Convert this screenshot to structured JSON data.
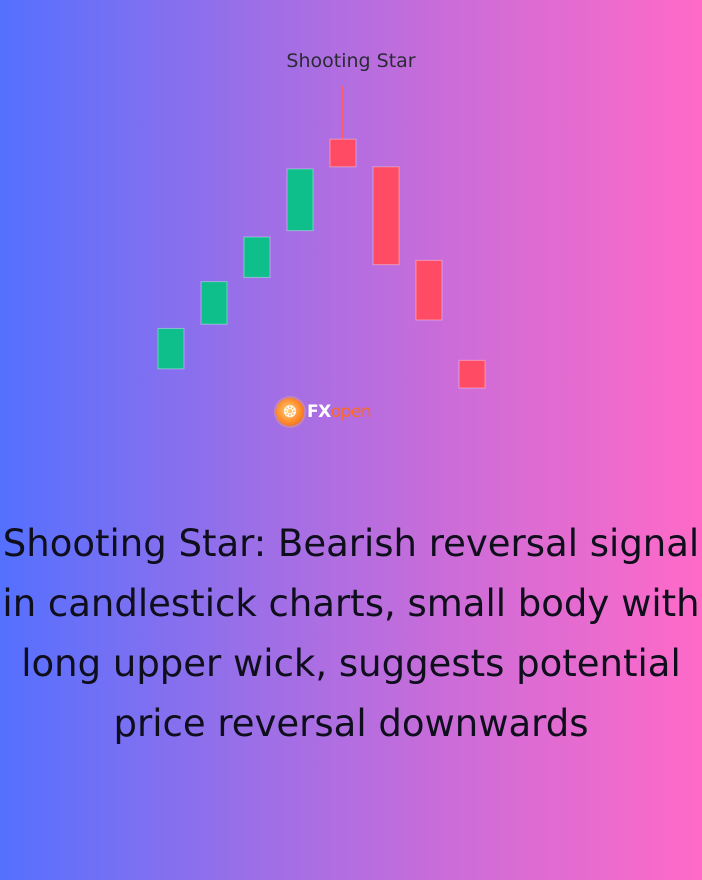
{
  "chart_data": {
    "type": "candlestick",
    "title": "Shooting Star",
    "xlabel": "",
    "ylabel": "",
    "grid": false,
    "legend": "none",
    "ylim": [
      0,
      100
    ],
    "colors": {
      "bullish": "#0fbf8b",
      "bearish": "#ff4b63",
      "wick": "#ff5a6e"
    },
    "candles": [
      {
        "direction": "bullish",
        "open": 9,
        "close": 28
      },
      {
        "direction": "bullish",
        "open": 30,
        "close": 50
      },
      {
        "direction": "bullish",
        "open": 52,
        "close": 71
      },
      {
        "direction": "bullish",
        "open": 74,
        "close": 103
      },
      {
        "direction": "bearish",
        "open": 117,
        "close": 104,
        "high": 142,
        "low": 104,
        "annotation": "Shooting Star"
      },
      {
        "direction": "bearish",
        "open": 104,
        "close": 58
      },
      {
        "direction": "bearish",
        "open": 60,
        "close": 32
      },
      {
        "direction": "bearish",
        "open": 13,
        "close": 0
      }
    ]
  },
  "logo": {
    "brand_fx": "FX",
    "brand_open": "open",
    "icon": "fxopen-logo-icon"
  },
  "caption": "Shooting Star: Bearish reversal signal in candlestick charts, small body with long upper wick, suggests potential price reversal downwards"
}
